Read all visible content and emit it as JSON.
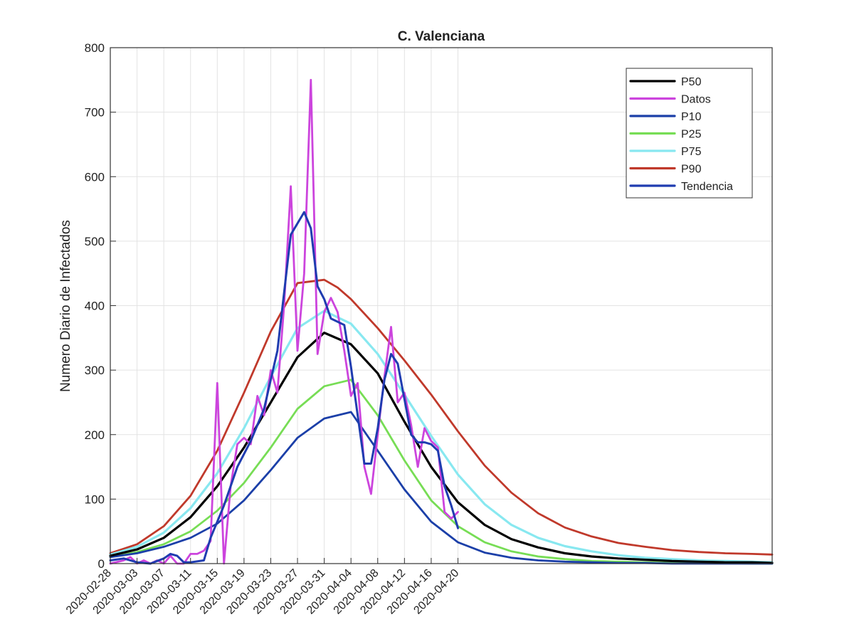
{
  "chart_data": {
    "type": "line",
    "title": "C. Valenciana",
    "ylabel": "Numero Diario de Infectados",
    "xlabel": "",
    "ylim": [
      0,
      800
    ],
    "yticks": [
      0,
      100,
      200,
      300,
      400,
      500,
      600,
      700,
      800
    ],
    "xlim": [
      "2020-02-28",
      "2020-06-06"
    ],
    "xticks": [
      "2020-02-28",
      "2020-03-03",
      "2020-03-07",
      "2020-03-11",
      "2020-03-15",
      "2020-03-19",
      "2020-03-23",
      "2020-03-27",
      "2020-03-31",
      "2020-04-04",
      "2020-04-08",
      "2020-04-12",
      "2020-04-16",
      "2020-04-20"
    ],
    "grid": true,
    "legend_position": "top-right",
    "series": [
      {
        "name": "P50",
        "color": "#000000",
        "points": [
          [
            "2020-02-28",
            12
          ],
          [
            "2020-03-03",
            22
          ],
          [
            "2020-03-07",
            40
          ],
          [
            "2020-03-11",
            72
          ],
          [
            "2020-03-15",
            120
          ],
          [
            "2020-03-19",
            180
          ],
          [
            "2020-03-23",
            250
          ],
          [
            "2020-03-27",
            320
          ],
          [
            "2020-03-31",
            358
          ],
          [
            "2020-04-04",
            340
          ],
          [
            "2020-04-08",
            295
          ],
          [
            "2020-04-12",
            220
          ],
          [
            "2020-04-16",
            150
          ],
          [
            "2020-04-20",
            95
          ],
          [
            "2020-04-24",
            60
          ],
          [
            "2020-04-28",
            38
          ],
          [
            "2020-05-02",
            25
          ],
          [
            "2020-05-06",
            16
          ],
          [
            "2020-05-10",
            11
          ],
          [
            "2020-05-14",
            8
          ],
          [
            "2020-05-18",
            6
          ],
          [
            "2020-05-22",
            4
          ],
          [
            "2020-05-26",
            3
          ],
          [
            "2020-05-30",
            2
          ],
          [
            "2020-06-03",
            2
          ],
          [
            "2020-06-06",
            1
          ]
        ]
      },
      {
        "name": "Datos",
        "color": "#cc44dd",
        "points": [
          [
            "2020-02-28",
            0
          ],
          [
            "2020-03-01",
            5
          ],
          [
            "2020-03-02",
            10
          ],
          [
            "2020-03-03",
            0
          ],
          [
            "2020-03-04",
            5
          ],
          [
            "2020-03-05",
            0
          ],
          [
            "2020-03-06",
            5
          ],
          [
            "2020-03-07",
            0
          ],
          [
            "2020-03-08",
            12
          ],
          [
            "2020-03-09",
            0
          ],
          [
            "2020-03-10",
            0
          ],
          [
            "2020-03-11",
            15
          ],
          [
            "2020-03-12",
            15
          ],
          [
            "2020-03-13",
            20
          ],
          [
            "2020-03-14",
            35
          ],
          [
            "2020-03-15",
            280
          ],
          [
            "2020-03-16",
            0
          ],
          [
            "2020-03-17",
            120
          ],
          [
            "2020-03-18",
            185
          ],
          [
            "2020-03-19",
            195
          ],
          [
            "2020-03-20",
            185
          ],
          [
            "2020-03-21",
            260
          ],
          [
            "2020-03-22",
            230
          ],
          [
            "2020-03-23",
            300
          ],
          [
            "2020-03-24",
            265
          ],
          [
            "2020-03-25",
            400
          ],
          [
            "2020-03-26",
            585
          ],
          [
            "2020-03-27",
            330
          ],
          [
            "2020-03-28",
            450
          ],
          [
            "2020-03-29",
            750
          ],
          [
            "2020-03-30",
            325
          ],
          [
            "2020-03-31",
            390
          ],
          [
            "2020-04-01",
            412
          ],
          [
            "2020-04-02",
            390
          ],
          [
            "2020-04-03",
            330
          ],
          [
            "2020-04-04",
            260
          ],
          [
            "2020-04-05",
            280
          ],
          [
            "2020-04-06",
            150
          ],
          [
            "2020-04-07",
            108
          ],
          [
            "2020-04-08",
            200
          ],
          [
            "2020-04-09",
            290
          ],
          [
            "2020-04-10",
            367
          ],
          [
            "2020-04-11",
            250
          ],
          [
            "2020-04-12",
            265
          ],
          [
            "2020-04-13",
            215
          ],
          [
            "2020-04-14",
            150
          ],
          [
            "2020-04-15",
            210
          ],
          [
            "2020-04-16",
            190
          ],
          [
            "2020-04-17",
            180
          ],
          [
            "2020-04-18",
            80
          ],
          [
            "2020-04-19",
            70
          ],
          [
            "2020-04-20",
            80
          ]
        ]
      },
      {
        "name": "P10",
        "color": "#1b3fa8",
        "points": [
          [
            "2020-02-28",
            10
          ],
          [
            "2020-03-03",
            16
          ],
          [
            "2020-03-07",
            26
          ],
          [
            "2020-03-11",
            40
          ],
          [
            "2020-03-15",
            62
          ],
          [
            "2020-03-19",
            98
          ],
          [
            "2020-03-23",
            145
          ],
          [
            "2020-03-27",
            195
          ],
          [
            "2020-03-31",
            225
          ],
          [
            "2020-04-04",
            235
          ],
          [
            "2020-04-08",
            175
          ],
          [
            "2020-04-12",
            115
          ],
          [
            "2020-04-16",
            65
          ],
          [
            "2020-04-20",
            33
          ],
          [
            "2020-04-24",
            17
          ],
          [
            "2020-04-28",
            9
          ],
          [
            "2020-05-02",
            5
          ],
          [
            "2020-05-06",
            3
          ],
          [
            "2020-05-10",
            2
          ],
          [
            "2020-05-14",
            1
          ],
          [
            "2020-05-18",
            1
          ],
          [
            "2020-05-22",
            0
          ],
          [
            "2020-05-26",
            0
          ],
          [
            "2020-05-30",
            0
          ],
          [
            "2020-06-03",
            0
          ],
          [
            "2020-06-06",
            0
          ]
        ]
      },
      {
        "name": "P25",
        "color": "#77dd55",
        "points": [
          [
            "2020-02-28",
            10
          ],
          [
            "2020-03-03",
            18
          ],
          [
            "2020-03-07",
            30
          ],
          [
            "2020-03-11",
            50
          ],
          [
            "2020-03-15",
            82
          ],
          [
            "2020-03-19",
            125
          ],
          [
            "2020-03-23",
            180
          ],
          [
            "2020-03-27",
            240
          ],
          [
            "2020-03-31",
            275
          ],
          [
            "2020-04-04",
            285
          ],
          [
            "2020-04-08",
            230
          ],
          [
            "2020-04-12",
            160
          ],
          [
            "2020-04-16",
            98
          ],
          [
            "2020-04-20",
            58
          ],
          [
            "2020-04-24",
            33
          ],
          [
            "2020-04-28",
            19
          ],
          [
            "2020-05-02",
            11
          ],
          [
            "2020-05-06",
            7
          ],
          [
            "2020-05-10",
            4
          ],
          [
            "2020-05-14",
            3
          ],
          [
            "2020-05-18",
            2
          ],
          [
            "2020-05-22",
            1
          ],
          [
            "2020-05-26",
            1
          ],
          [
            "2020-05-30",
            1
          ],
          [
            "2020-06-03",
            0
          ],
          [
            "2020-06-06",
            0
          ]
        ]
      },
      {
        "name": "P75",
        "color": "#88e8f0",
        "points": [
          [
            "2020-02-28",
            14
          ],
          [
            "2020-03-03",
            26
          ],
          [
            "2020-03-07",
            48
          ],
          [
            "2020-03-11",
            86
          ],
          [
            "2020-03-15",
            140
          ],
          [
            "2020-03-19",
            210
          ],
          [
            "2020-03-23",
            290
          ],
          [
            "2020-03-27",
            365
          ],
          [
            "2020-03-31",
            392
          ],
          [
            "2020-04-04",
            372
          ],
          [
            "2020-04-08",
            325
          ],
          [
            "2020-04-12",
            262
          ],
          [
            "2020-04-16",
            198
          ],
          [
            "2020-04-20",
            138
          ],
          [
            "2020-04-24",
            92
          ],
          [
            "2020-04-28",
            60
          ],
          [
            "2020-05-02",
            40
          ],
          [
            "2020-05-06",
            27
          ],
          [
            "2020-05-10",
            19
          ],
          [
            "2020-05-14",
            13
          ],
          [
            "2020-05-18",
            9
          ],
          [
            "2020-05-22",
            7
          ],
          [
            "2020-05-26",
            5
          ],
          [
            "2020-05-30",
            4
          ],
          [
            "2020-06-03",
            3
          ],
          [
            "2020-06-06",
            2
          ]
        ]
      },
      {
        "name": "P90",
        "color": "#c0392b",
        "points": [
          [
            "2020-02-28",
            16
          ],
          [
            "2020-03-03",
            30
          ],
          [
            "2020-03-07",
            58
          ],
          [
            "2020-03-11",
            105
          ],
          [
            "2020-03-15",
            175
          ],
          [
            "2020-03-19",
            265
          ],
          [
            "2020-03-23",
            360
          ],
          [
            "2020-03-27",
            435
          ],
          [
            "2020-03-31",
            440
          ],
          [
            "2020-04-02",
            428
          ],
          [
            "2020-04-04",
            410
          ],
          [
            "2020-04-08",
            365
          ],
          [
            "2020-04-12",
            315
          ],
          [
            "2020-04-16",
            262
          ],
          [
            "2020-04-20",
            205
          ],
          [
            "2020-04-24",
            152
          ],
          [
            "2020-04-28",
            110
          ],
          [
            "2020-05-02",
            78
          ],
          [
            "2020-05-06",
            56
          ],
          [
            "2020-05-10",
            42
          ],
          [
            "2020-05-14",
            32
          ],
          [
            "2020-05-18",
            26
          ],
          [
            "2020-05-22",
            21
          ],
          [
            "2020-05-26",
            18
          ],
          [
            "2020-05-30",
            16
          ],
          [
            "2020-06-03",
            15
          ],
          [
            "2020-06-06",
            14
          ]
        ]
      },
      {
        "name": "Tendencia",
        "color": "#1f3cb0",
        "points": [
          [
            "2020-02-28",
            5
          ],
          [
            "2020-03-01",
            8
          ],
          [
            "2020-03-03",
            2
          ],
          [
            "2020-03-05",
            0
          ],
          [
            "2020-03-07",
            8
          ],
          [
            "2020-03-08",
            15
          ],
          [
            "2020-03-09",
            12
          ],
          [
            "2020-03-10",
            2
          ],
          [
            "2020-03-11",
            2
          ],
          [
            "2020-03-13",
            5
          ],
          [
            "2020-03-14",
            40
          ],
          [
            "2020-03-16",
            90
          ],
          [
            "2020-03-18",
            150
          ],
          [
            "2020-03-20",
            190
          ],
          [
            "2020-03-22",
            240
          ],
          [
            "2020-03-24",
            330
          ],
          [
            "2020-03-26",
            510
          ],
          [
            "2020-03-28",
            545
          ],
          [
            "2020-03-29",
            520
          ],
          [
            "2020-03-30",
            430
          ],
          [
            "2020-03-31",
            410
          ],
          [
            "2020-04-01",
            380
          ],
          [
            "2020-04-03",
            370
          ],
          [
            "2020-04-04",
            305
          ],
          [
            "2020-04-05",
            230
          ],
          [
            "2020-04-06",
            155
          ],
          [
            "2020-04-07",
            155
          ],
          [
            "2020-04-08",
            210
          ],
          [
            "2020-04-09",
            285
          ],
          [
            "2020-04-10",
            325
          ],
          [
            "2020-04-11",
            310
          ],
          [
            "2020-04-12",
            255
          ],
          [
            "2020-04-13",
            200
          ],
          [
            "2020-04-14",
            188
          ],
          [
            "2020-04-15",
            188
          ],
          [
            "2020-04-16",
            185
          ],
          [
            "2020-04-17",
            175
          ],
          [
            "2020-04-18",
            120
          ],
          [
            "2020-04-19",
            90
          ],
          [
            "2020-04-20",
            55
          ]
        ]
      }
    ]
  }
}
